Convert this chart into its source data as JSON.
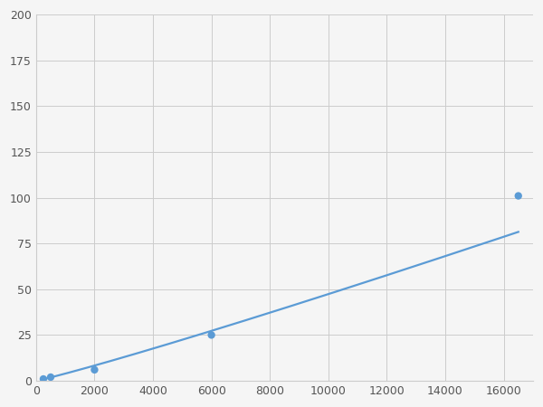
{
  "x_data": [
    250,
    500,
    2000,
    6000,
    16500
  ],
  "y_data": [
    1,
    2,
    6,
    25,
    101
  ],
  "line_color": "#5b9bd5",
  "marker_color": "#5b9bd5",
  "marker_size": 6,
  "line_width": 1.6,
  "xlim": [
    0,
    17000
  ],
  "ylim": [
    0,
    200
  ],
  "xticks": [
    0,
    2000,
    4000,
    6000,
    8000,
    10000,
    12000,
    14000,
    16000
  ],
  "yticks": [
    0,
    25,
    50,
    75,
    100,
    125,
    150,
    175,
    200
  ],
  "background_color": "#f5f5f5",
  "grid_color": "#cccccc",
  "figure_bg": "#f5f5f5",
  "tick_label_color": "#555555",
  "tick_label_size": 9
}
